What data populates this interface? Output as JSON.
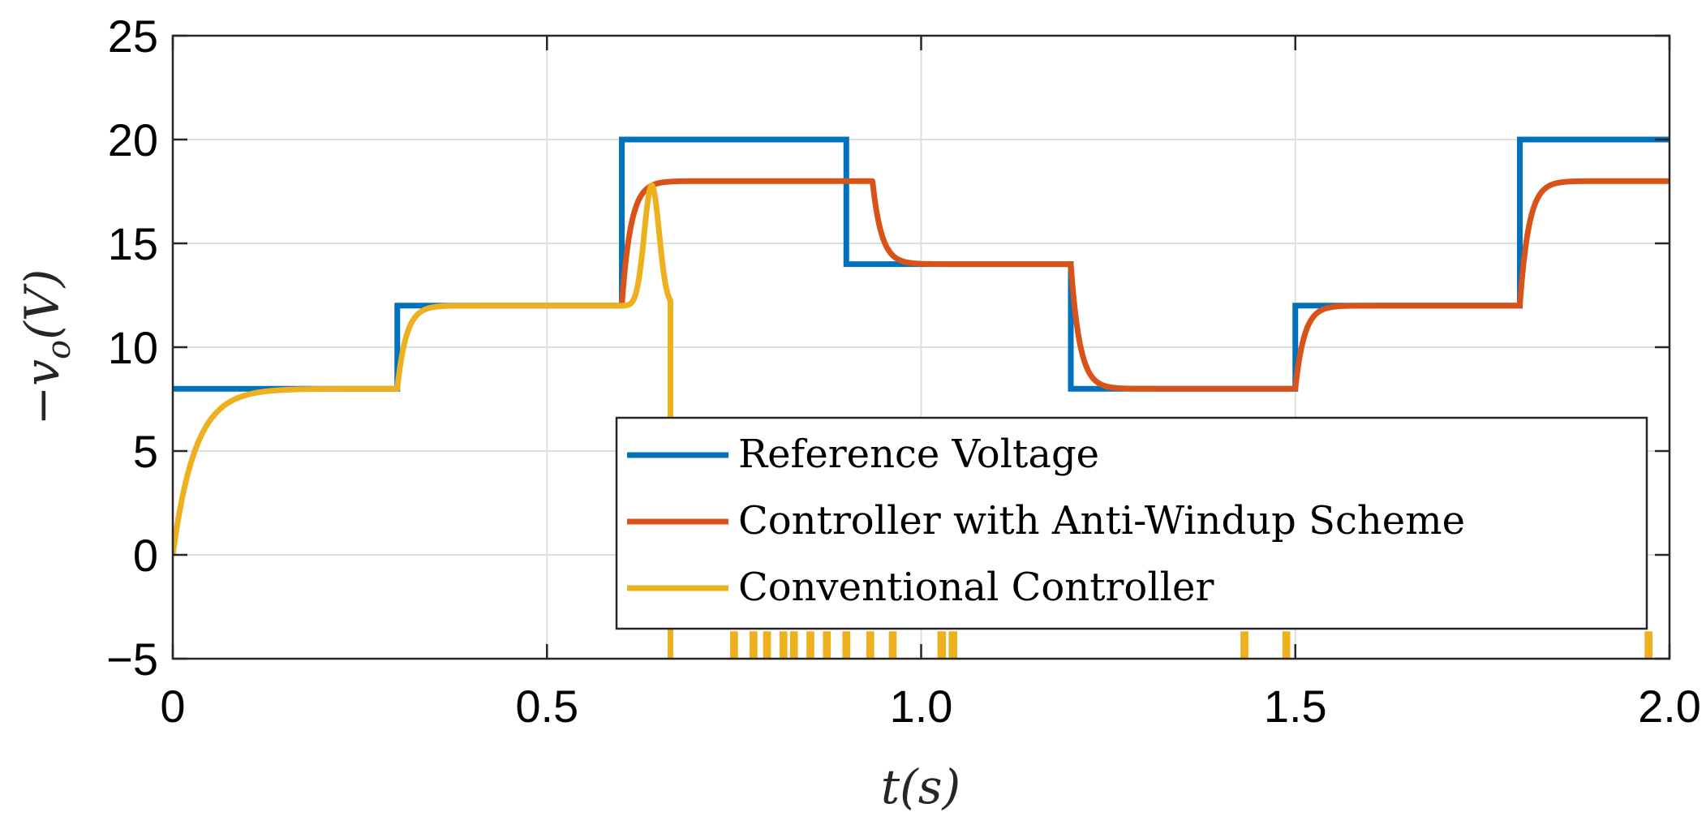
{
  "chart_data": {
    "type": "line",
    "title": "",
    "xlabel": "t(s)",
    "ylabel": "−v_o(V)",
    "ylabel_base": "−v",
    "ylabel_sub": "o",
    "ylabel_paren": "(V)",
    "xlim": [
      0,
      2.0
    ],
    "ylim": [
      -5,
      25
    ],
    "xticks": [
      {
        "value": 0,
        "label": "0"
      },
      {
        "value": 0.5,
        "label": "0.5"
      },
      {
        "value": 1.0,
        "label": "1.0"
      },
      {
        "value": 1.5,
        "label": "1.5"
      },
      {
        "value": 2.0,
        "label": "2.0"
      }
    ],
    "yticks": [
      {
        "value": -5,
        "label": "−5"
      },
      {
        "value": 0,
        "label": "0"
      },
      {
        "value": 5,
        "label": "5"
      },
      {
        "value": 10,
        "label": "10"
      },
      {
        "value": 15,
        "label": "15"
      },
      {
        "value": 20,
        "label": "20"
      },
      {
        "value": 25,
        "label": "25"
      }
    ],
    "grid": true,
    "legend_position": "bottom-right",
    "saturation_level": 18,
    "series": [
      {
        "name": "Reference Voltage",
        "color": "#0072BD",
        "kind": "step",
        "steps": [
          {
            "t": 0.0,
            "v": 8
          },
          {
            "t": 0.3,
            "v": 12
          },
          {
            "t": 0.6,
            "v": 20
          },
          {
            "t": 0.9,
            "v": 14
          },
          {
            "t": 1.2,
            "v": 8
          },
          {
            "t": 1.5,
            "v": 12
          },
          {
            "t": 1.8,
            "v": 20
          }
        ]
      },
      {
        "name": "Controller with Anti-Windup Scheme",
        "color": "#D95319",
        "kind": "first_order",
        "tau": 0.012,
        "start_time": 0.6,
        "start_value": 12,
        "targets": [
          {
            "t": 0.6,
            "v": 18
          },
          {
            "t": 0.935,
            "v": 14
          },
          {
            "t": 1.2,
            "v": 8
          },
          {
            "t": 1.5,
            "v": 12
          },
          {
            "t": 1.8,
            "v": 18
          }
        ]
      },
      {
        "name": "Conventional Controller",
        "color": "#EDB120",
        "kind": "conventional",
        "tau_initial": 0.03,
        "tau_step": 0.012,
        "segments": [
          {
            "t": 0.0,
            "v": 8
          },
          {
            "t": 0.3,
            "v": 12
          }
        ],
        "peak": {
          "t": 0.64,
          "v": 17.8
        },
        "drop_time": 0.665,
        "crossings": [
          0.665,
          0.748,
          0.752,
          0.774,
          0.778,
          0.792,
          0.796,
          0.814,
          0.818,
          0.828,
          0.832,
          0.85,
          0.854,
          0.872,
          0.876,
          0.898,
          0.902,
          0.93,
          0.934,
          0.96,
          0.964,
          1.025,
          1.03,
          1.04,
          1.045,
          1.43,
          1.434,
          1.486,
          1.49,
          1.97,
          1.974
        ]
      }
    ]
  }
}
